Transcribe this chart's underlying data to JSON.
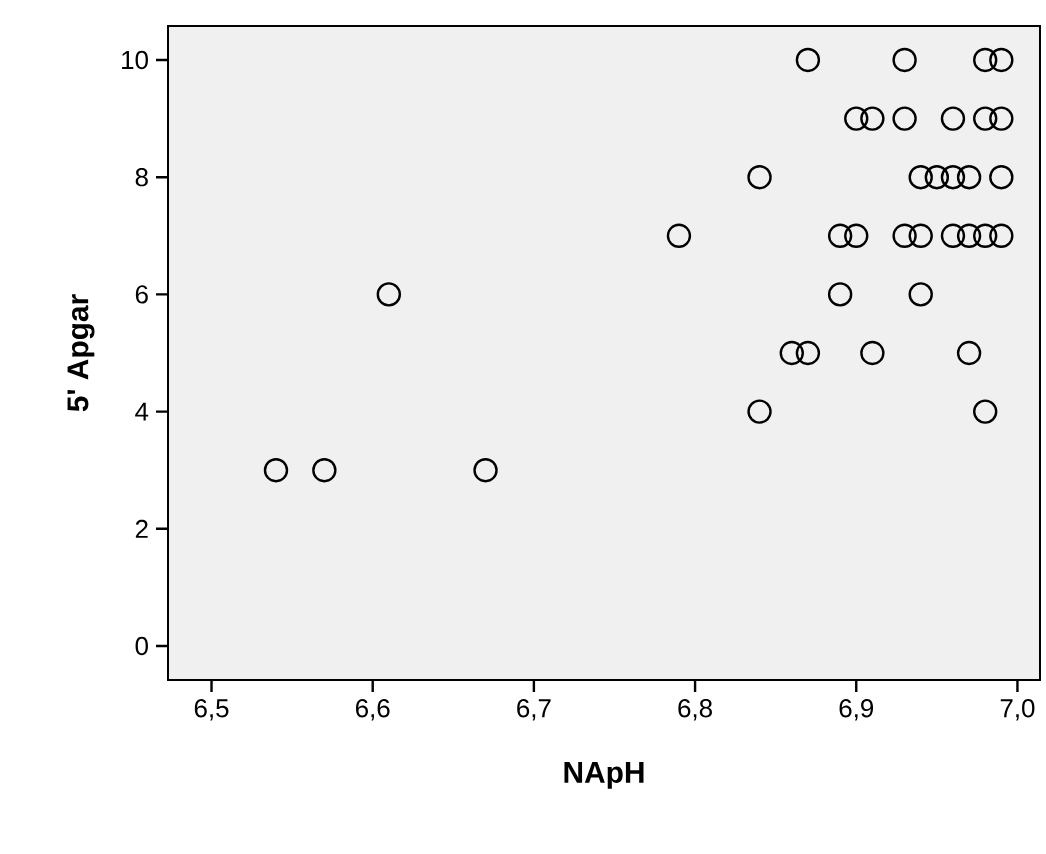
{
  "chart_data": {
    "type": "scatter",
    "xlabel": "NApH",
    "ylabel": "5' Apgar",
    "x": [
      6.54,
      6.57,
      6.61,
      6.67,
      6.79,
      6.84,
      6.84,
      6.86,
      6.87,
      6.87,
      6.89,
      6.89,
      6.9,
      6.9,
      6.91,
      6.91,
      6.93,
      6.93,
      6.93,
      6.94,
      6.94,
      6.94,
      6.95,
      6.96,
      6.96,
      6.96,
      6.97,
      6.97,
      6.97,
      6.98,
      6.98,
      6.98,
      6.98,
      6.99,
      6.99,
      6.99,
      6.99
    ],
    "values": [
      3,
      3,
      6,
      3,
      7,
      8,
      4,
      5,
      5,
      10,
      7,
      6,
      9,
      7,
      9,
      5,
      10,
      9,
      7,
      8,
      7,
      6,
      8,
      9,
      8,
      7,
      8,
      7,
      5,
      10,
      9,
      7,
      4,
      10,
      9,
      8,
      7
    ],
    "color": "#000000",
    "marker": "circle",
    "xlim": [
      6.473,
      7.014
    ],
    "ylim": [
      -0.58,
      10.58
    ],
    "xticks": [
      {
        "value": 6.5,
        "label": "6,5"
      },
      {
        "value": 6.6,
        "label": "6,6"
      },
      {
        "value": 6.7,
        "label": "6,7"
      },
      {
        "value": 6.8,
        "label": "6,8"
      },
      {
        "value": 6.9,
        "label": "6,9"
      },
      {
        "value": 7.0,
        "label": "7,0"
      }
    ],
    "yticks": [
      0,
      2,
      4,
      6,
      8,
      10
    ],
    "grid": false
  }
}
